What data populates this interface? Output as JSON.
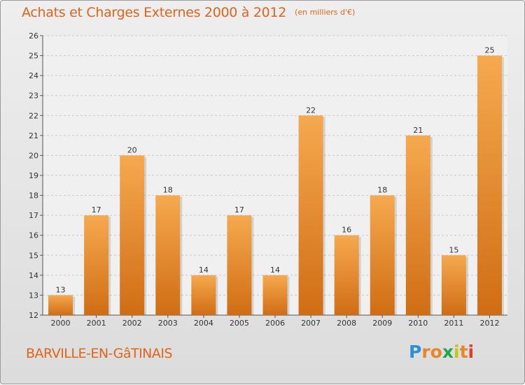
{
  "chart_data": {
    "type": "bar",
    "title": "Achats et Charges Externes 2000 à 2012",
    "unit_label": "(en milliers d'€)",
    "categories": [
      "2000",
      "2001",
      "2002",
      "2003",
      "2004",
      "2005",
      "2006",
      "2007",
      "2008",
      "2009",
      "2010",
      "2011",
      "2012"
    ],
    "values": [
      13,
      17,
      20,
      18,
      14,
      17,
      14,
      22,
      16,
      18,
      21,
      15,
      25
    ],
    "ylim": [
      12,
      26
    ],
    "yticks": [
      "12",
      "13",
      "14",
      "15",
      "16",
      "17",
      "18",
      "19",
      "20",
      "21",
      "22",
      "23",
      "24",
      "25",
      "26"
    ],
    "grid": true,
    "xlabel": "",
    "ylabel": ""
  },
  "commune": "BARVILLE-EN-GâTINAIS",
  "logo": {
    "letters": [
      "P",
      "r",
      "o",
      "x",
      "i",
      "t",
      "i"
    ],
    "colors": [
      "#2a8fd6",
      "#e8862a",
      "#e8862a",
      "#1fa84b",
      "#c7c41a",
      "#e8862a",
      "#e03a2a"
    ]
  },
  "colors": {
    "bar_top": "#f6a94f",
    "bar_bottom": "#d06d14",
    "title": "#e0651a",
    "grid": "#c8c8c8"
  }
}
